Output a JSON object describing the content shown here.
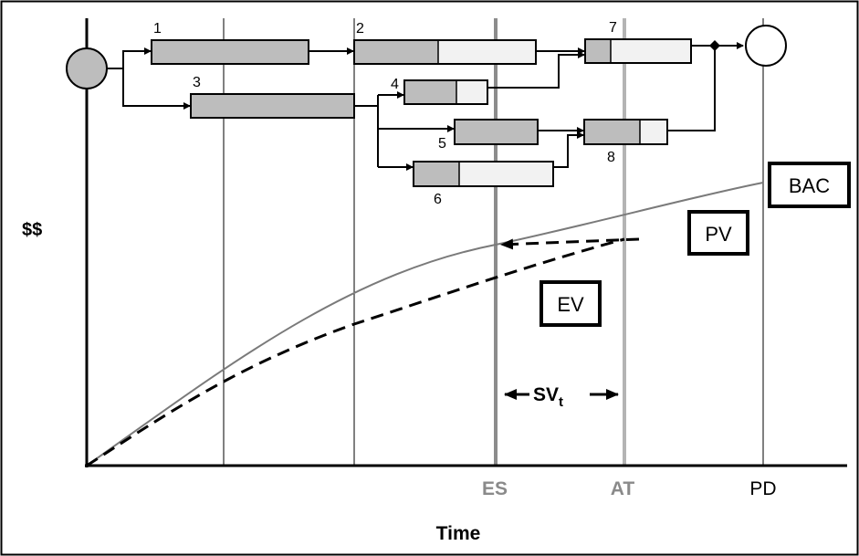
{
  "diagram": {
    "axes": {
      "y_label": "$$",
      "x_label": "Time"
    },
    "milestones": [
      "ES",
      "AT",
      "PD"
    ],
    "boxes": {
      "bac": "BAC",
      "pv": "PV",
      "ev": "EV"
    },
    "schedule_variance": {
      "main": "SV",
      "sub": "t"
    },
    "tasks": [
      {
        "id": "1",
        "label": "1",
        "done": 1.0
      },
      {
        "id": "2",
        "label": "2",
        "done": 0.46
      },
      {
        "id": "3",
        "label": "3",
        "done": 1.0
      },
      {
        "id": "4",
        "label": "4",
        "done": 0.63
      },
      {
        "id": "5",
        "label": "5",
        "done": 1.0
      },
      {
        "id": "6",
        "label": "6",
        "done": 0.33
      },
      {
        "id": "7",
        "label": "7",
        "done": 0.24
      },
      {
        "id": "8",
        "label": "8",
        "done": 0.67
      }
    ]
  },
  "colors": {
    "done_fill": "#bdbdbd",
    "remaining_fill": "#f2f2f2",
    "node_start": "#bdbdbd",
    "es_line": "#8c8c8c",
    "at_line": "#b4b4b4",
    "pv_curve": "#7a7a7a"
  }
}
